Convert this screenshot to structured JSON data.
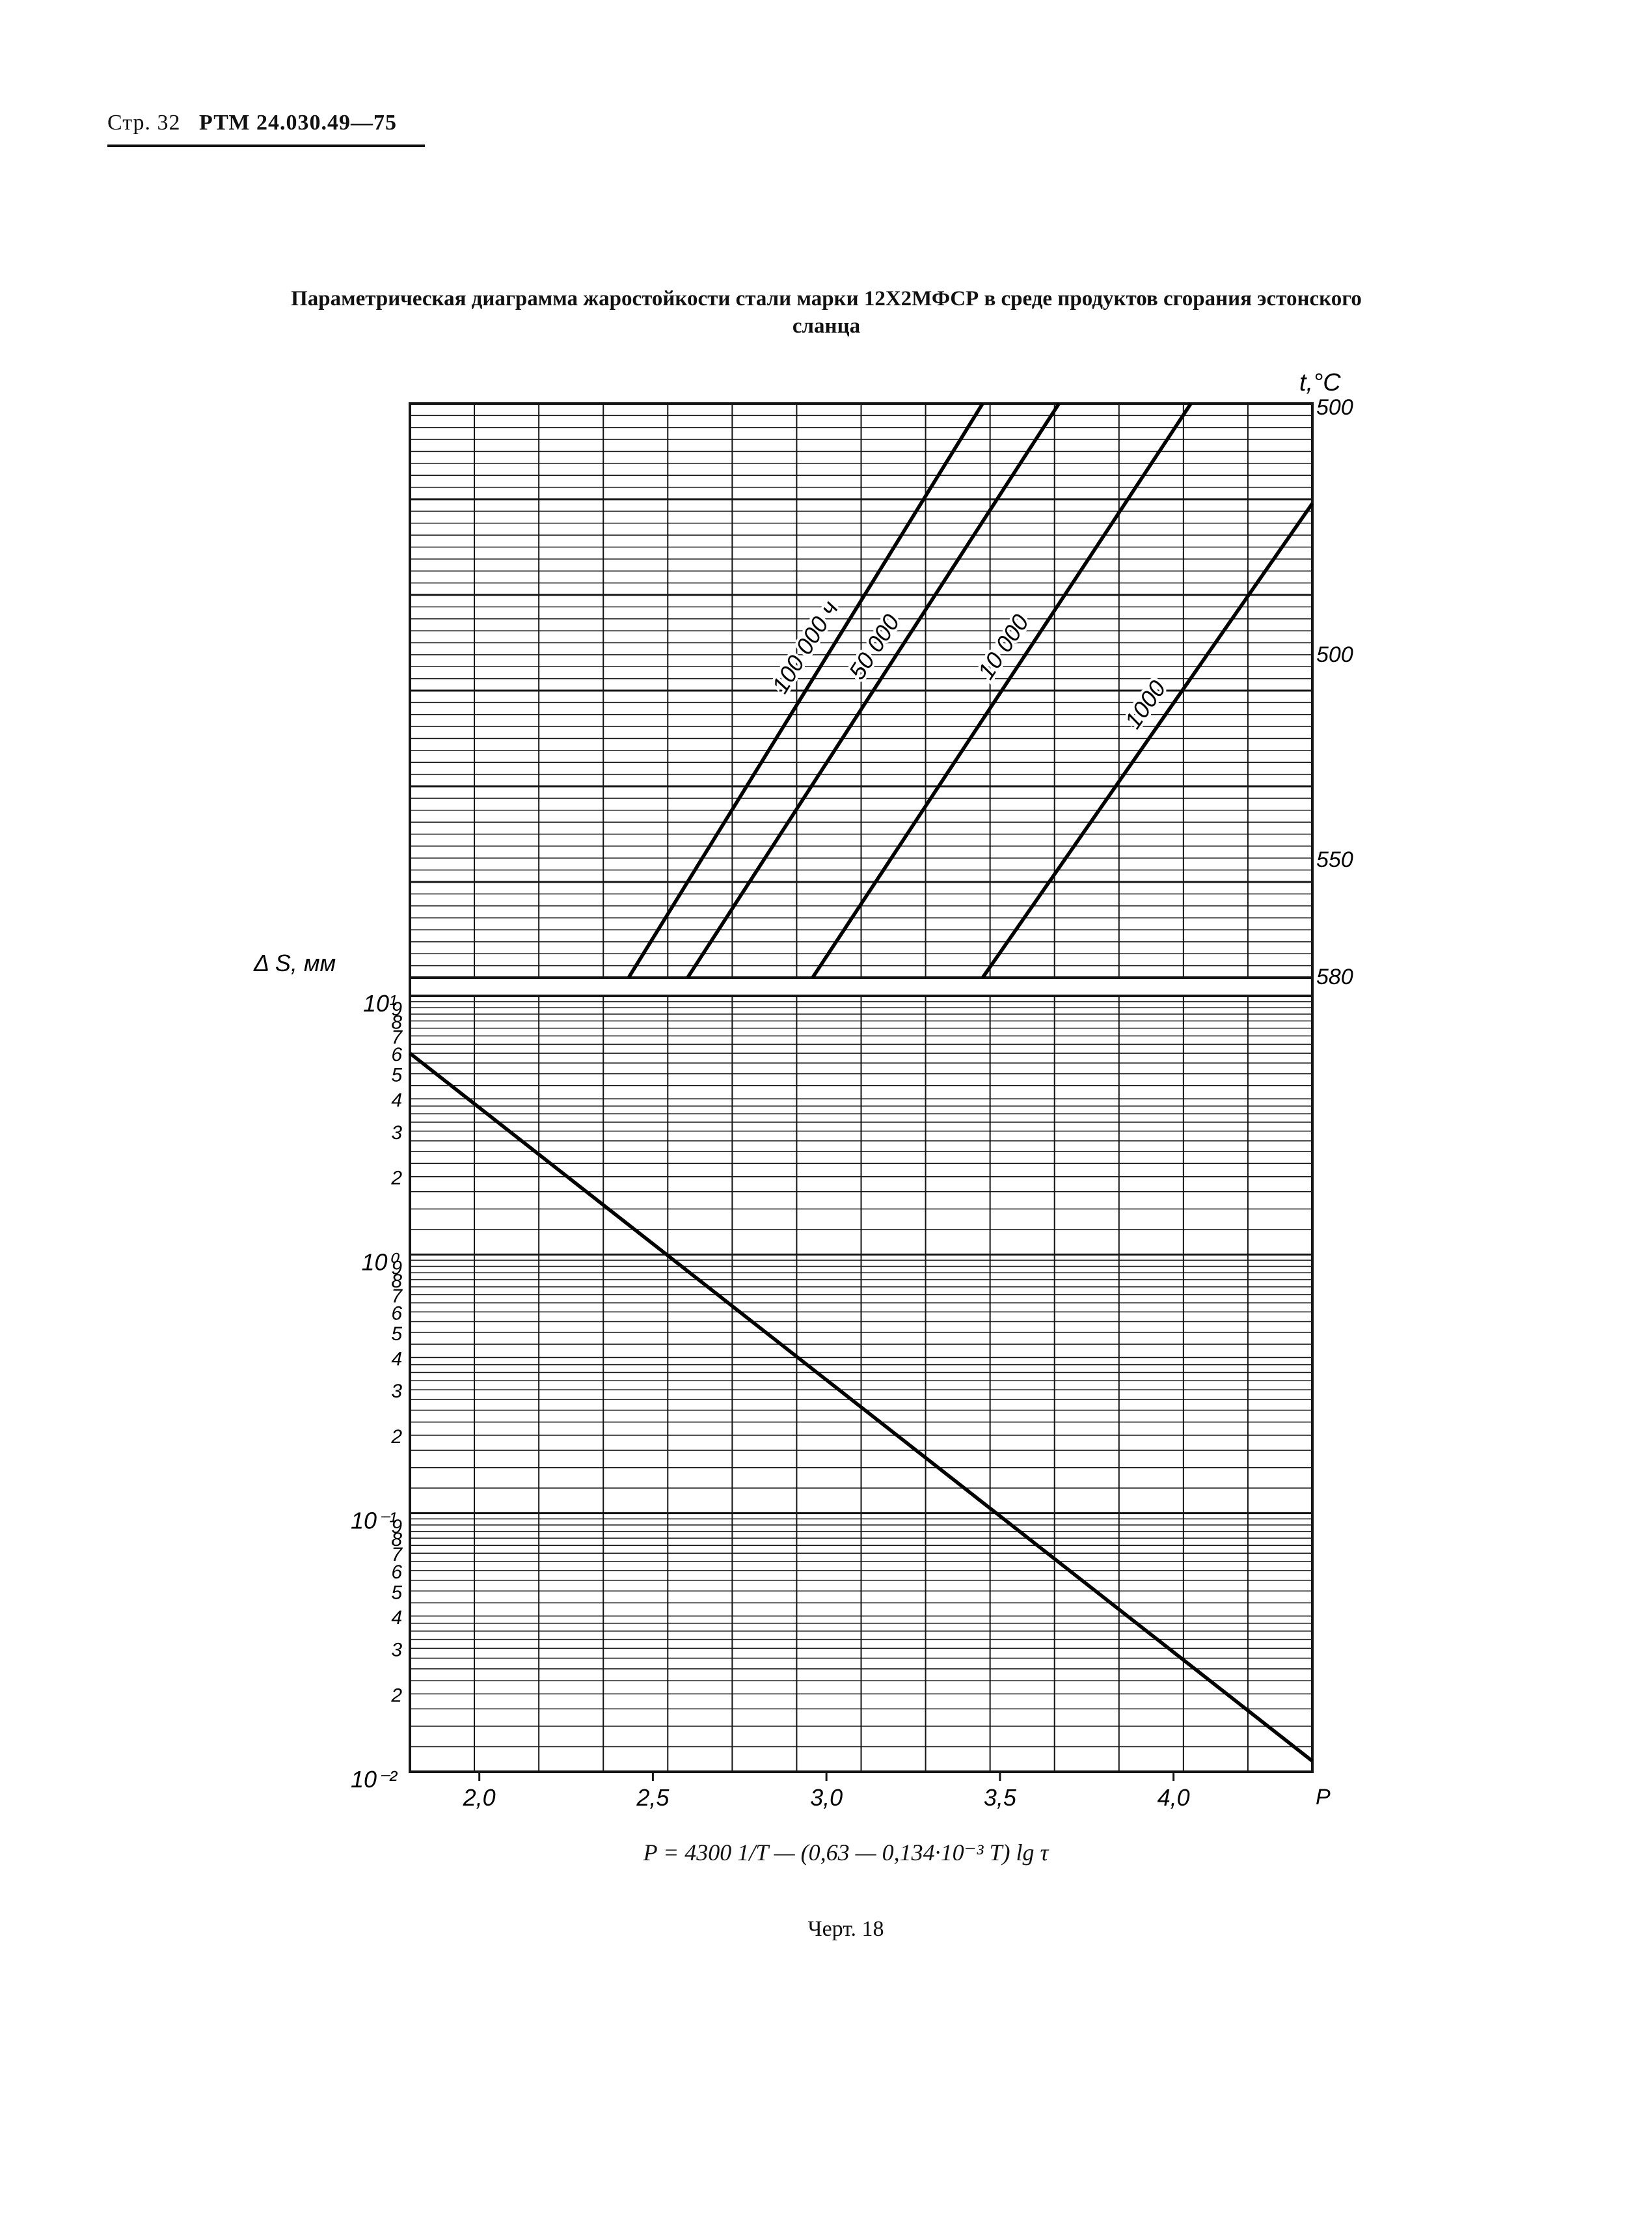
{
  "header": {
    "page_label": "Стр. 32",
    "doc_code": "РТМ 24.030.49—75"
  },
  "caption": "Параметрическая диаграмма жаростойкости стали марки 12Х2МФСР в среде продуктов сгорания эстонского сланца",
  "formula": "P = 4300 1/T — (0,63 — 0,134·10⁻³ T) lg τ",
  "figure_label": "Черт. 18",
  "chart_data": [
    {
      "type": "line",
      "panel": "top",
      "ylabel": "t,°C",
      "y_ticks": [
        "500",
        "500",
        "550",
        "580"
      ],
      "xlim": [
        1.8,
        4.4
      ],
      "series": [
        {
          "name": "100 000 ч",
          "x": [
            2.43,
            3.45
          ],
          "y": [
            580,
            450
          ]
        },
        {
          "name": "50 000",
          "x": [
            2.6,
            3.67
          ],
          "y": [
            580,
            450
          ]
        },
        {
          "name": "10 000",
          "x": [
            2.96,
            4.05
          ],
          "y": [
            580,
            450
          ]
        },
        {
          "name": "1000",
          "x": [
            3.45,
            4.6
          ],
          "y": [
            580,
            450
          ]
        }
      ],
      "grid": true
    },
    {
      "type": "line",
      "panel": "bottom",
      "ylabel": "Δ S, мм",
      "xlabel": "P",
      "x_ticks": [
        "2,0",
        "2,5",
        "3,0",
        "3,5",
        "4,0"
      ],
      "y_scale": "log",
      "ylim": [
        0.01,
        10
      ],
      "y_decade_labels": [
        "10⁻²",
        "10⁻¹",
        "10⁰",
        "10¹"
      ],
      "y_minor_labels": [
        "2",
        "3",
        "4",
        "5",
        "6",
        "7",
        "8",
        "9"
      ],
      "series": [
        {
          "x": [
            1.8,
            4.4
          ],
          "y": [
            6.0,
            0.011
          ]
        }
      ],
      "grid": true
    }
  ]
}
